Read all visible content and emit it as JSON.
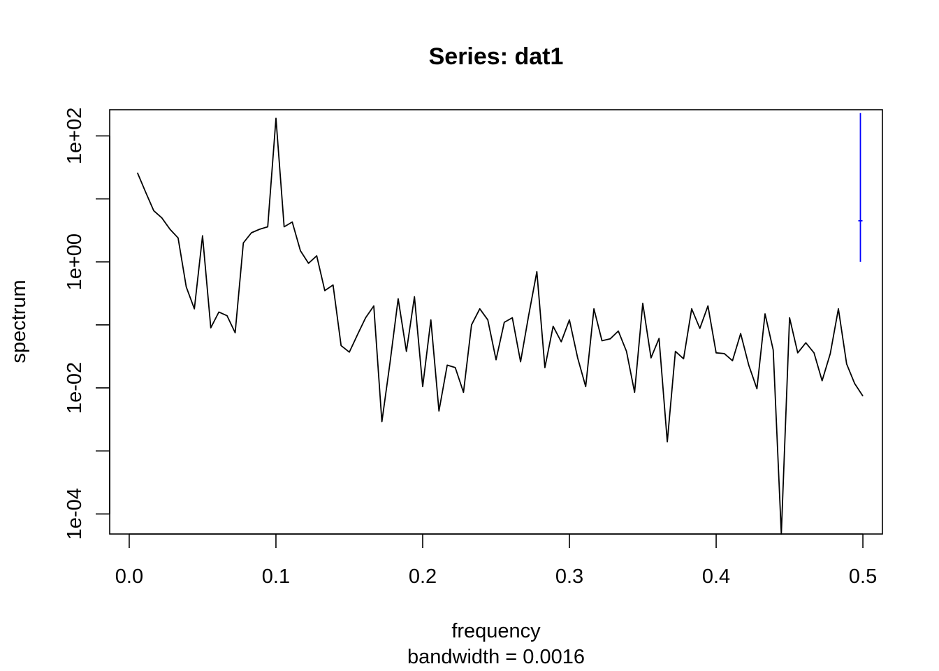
{
  "chart_data": {
    "type": "line",
    "title": "Series: dat1",
    "xlabel": "frequency",
    "sublabel": "bandwidth = 0.0016",
    "ylabel": "spectrum",
    "y_scale": "log10",
    "xlim": [
      -0.0133,
      0.5133
    ],
    "ylim": [
      4.8e-05,
      260
    ],
    "x_ticks": [
      {
        "value": 0.0,
        "label": "0.0"
      },
      {
        "value": 0.1,
        "label": "0.1"
      },
      {
        "value": 0.2,
        "label": "0.2"
      },
      {
        "value": 0.3,
        "label": "0.3"
      },
      {
        "value": 0.4,
        "label": "0.4"
      },
      {
        "value": 0.5,
        "label": "0.5"
      }
    ],
    "y_ticks": [
      {
        "value": 100,
        "label": "1e+02"
      },
      {
        "value": 10,
        "label": ""
      },
      {
        "value": 1,
        "label": "1e+00"
      },
      {
        "value": 0.1,
        "label": ""
      },
      {
        "value": 0.01,
        "label": "1e-02"
      },
      {
        "value": 0.001,
        "label": ""
      },
      {
        "value": 0.0001,
        "label": "1e-04"
      }
    ],
    "grid": false,
    "legend": "none",
    "series": [
      {
        "color": "#000000",
        "x": [
          0.0056,
          0.0111,
          0.0167,
          0.0222,
          0.0278,
          0.0333,
          0.0389,
          0.0444,
          0.05,
          0.0556,
          0.0611,
          0.0667,
          0.0722,
          0.0778,
          0.0833,
          0.0889,
          0.0944,
          0.1,
          0.1056,
          0.1111,
          0.1167,
          0.1222,
          0.1278,
          0.1333,
          0.1389,
          0.1444,
          0.15,
          0.1556,
          0.1611,
          0.1667,
          0.1722,
          0.1778,
          0.1833,
          0.1889,
          0.1944,
          0.2,
          0.2056,
          0.2111,
          0.2167,
          0.2222,
          0.2278,
          0.2333,
          0.2389,
          0.2444,
          0.25,
          0.2556,
          0.2611,
          0.2667,
          0.2722,
          0.2778,
          0.2833,
          0.2889,
          0.2944,
          0.3,
          0.3056,
          0.3111,
          0.3167,
          0.3222,
          0.3278,
          0.3333,
          0.3389,
          0.3444,
          0.35,
          0.3556,
          0.3611,
          0.3667,
          0.3722,
          0.3778,
          0.3833,
          0.3889,
          0.3944,
          0.4,
          0.4056,
          0.4111,
          0.4167,
          0.4222,
          0.4278,
          0.4333,
          0.4389,
          0.4444,
          0.45,
          0.4556,
          0.4611,
          0.4667,
          0.4722,
          0.4778,
          0.4833,
          0.4889,
          0.4944,
          0.5
        ],
        "y": [
          26,
          13,
          6.5,
          5,
          3.3,
          2.4,
          0.4,
          0.18,
          2.6,
          0.09,
          0.16,
          0.14,
          0.075,
          2.0,
          2.9,
          3.3,
          3.6,
          190,
          3.6,
          4.3,
          1.5,
          0.95,
          1.25,
          0.35,
          0.43,
          0.047,
          0.037,
          0.07,
          0.13,
          0.2,
          0.0029,
          0.026,
          0.26,
          0.038,
          0.28,
          0.0105,
          0.12,
          0.0043,
          0.023,
          0.021,
          0.0085,
          0.1,
          0.18,
          0.12,
          0.028,
          0.11,
          0.13,
          0.026,
          0.14,
          0.7,
          0.021,
          0.095,
          0.054,
          0.12,
          0.03,
          0.0105,
          0.18,
          0.056,
          0.06,
          0.08,
          0.038,
          0.0085,
          0.22,
          0.03,
          0.061,
          0.0014,
          0.038,
          0.029,
          0.18,
          0.088,
          0.2,
          0.036,
          0.035,
          0.027,
          0.073,
          0.023,
          0.0097,
          0.15,
          0.04,
          4.8e-05,
          0.13,
          0.036,
          0.052,
          0.036,
          0.013,
          0.035,
          0.18,
          0.024,
          0.0117,
          0.0074
        ]
      }
    ],
    "bandwidth_bar": {
      "color": "#0000ff",
      "x": 0.4983,
      "y_low": 1.0,
      "y_mid": 4.5,
      "y_high": 230
    }
  }
}
